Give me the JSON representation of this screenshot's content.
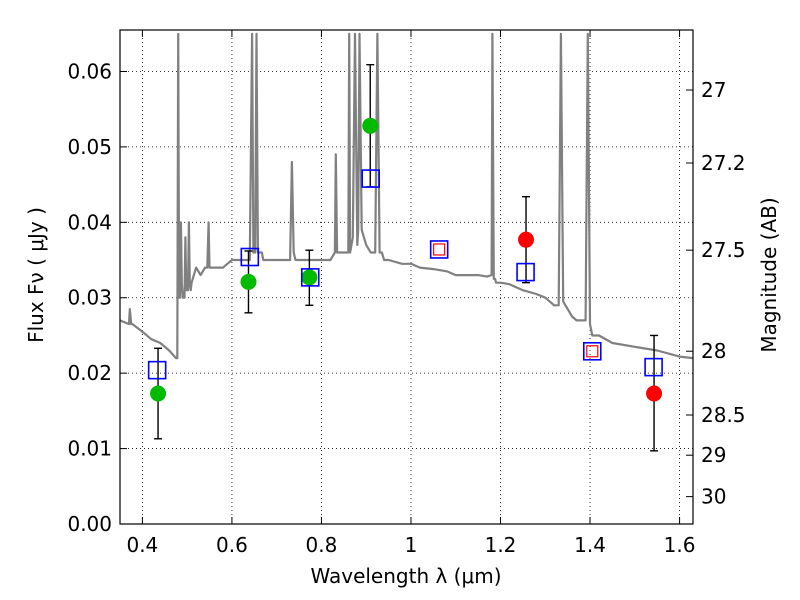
{
  "chart_data": {
    "type": "scatter",
    "title": "",
    "xlabel": "Wavelength  λ (μm)",
    "ylabel": "Flux  Fν  ( μJy )",
    "y2label": "Magnitude (AB)",
    "xlim": [
      0.35,
      1.63
    ],
    "ylim": [
      0.0,
      0.0655
    ],
    "grid": true,
    "x_ticks": [
      0.4,
      0.6,
      0.8,
      1.0,
      1.2,
      1.4,
      1.6
    ],
    "x_tick_labels": [
      "0.4",
      "0.6",
      "0.8",
      "1",
      "1.2",
      "1.4",
      "1.6"
    ],
    "y_ticks": [
      0.0,
      0.01,
      0.02,
      0.03,
      0.04,
      0.05,
      0.06
    ],
    "y_tick_labels": [
      "0.00",
      "0.01",
      "0.02",
      "0.03",
      "0.04",
      "0.05",
      "0.06"
    ],
    "y2_ticks": [
      27,
      27.2,
      27.5,
      28,
      28.5,
      29,
      30
    ],
    "y2_tick_labels": [
      "27",
      "27.2",
      "27.5",
      "28",
      "28.5",
      "29",
      "30"
    ],
    "colors": {
      "model": "#808080",
      "hst": "#00bb00",
      "ir": "#ff0000",
      "model_box": "#0000ff",
      "error": "#000000"
    },
    "series": [
      {
        "kind": "model_spectrum",
        "x": [
          0.35,
          0.37,
          0.372,
          0.375,
          0.378,
          0.4,
          0.42,
          0.44,
          0.46,
          0.475,
          0.478,
          0.48,
          0.482,
          0.484,
          0.486,
          0.488,
          0.49,
          0.492,
          0.494,
          0.496,
          0.498,
          0.5,
          0.502,
          0.504,
          0.506,
          0.508,
          0.51,
          0.52,
          0.53,
          0.54,
          0.545,
          0.548,
          0.55,
          0.56,
          0.58,
          0.6,
          0.62,
          0.64,
          0.645,
          0.648,
          0.652,
          0.655,
          0.658,
          0.661,
          0.664,
          0.667,
          0.67,
          0.7,
          0.72,
          0.73,
          0.734,
          0.738,
          0.742,
          0.75,
          0.78,
          0.8,
          0.82,
          0.83,
          0.832,
          0.835,
          0.84,
          0.85,
          0.86,
          0.862,
          0.864,
          0.87,
          0.875,
          0.88,
          0.882,
          0.885,
          0.89,
          0.9,
          0.91,
          0.92,
          0.925,
          0.93,
          0.935,
          0.94,
          0.95,
          0.98,
          1.0,
          1.02,
          1.05,
          1.08,
          1.1,
          1.12,
          1.15,
          1.17,
          1.18,
          1.182,
          1.185,
          1.188,
          1.19,
          1.2,
          1.22,
          1.25,
          1.28,
          1.3,
          1.32,
          1.33,
          1.335,
          1.34,
          1.345,
          1.35,
          1.36,
          1.37,
          1.38,
          1.39,
          1.395,
          1.4,
          1.405,
          1.41,
          1.42,
          1.45,
          1.5,
          1.55,
          1.6,
          1.63
        ],
        "y": [
          0.027,
          0.0265,
          0.0285,
          0.0265,
          0.0265,
          0.0255,
          0.0245,
          0.024,
          0.023,
          0.022,
          0.022,
          0.065,
          0.03,
          0.03,
          0.04,
          0.032,
          0.03,
          0.03,
          0.03,
          0.038,
          0.031,
          0.031,
          0.031,
          0.04,
          0.032,
          0.031,
          0.032,
          0.034,
          0.033,
          0.034,
          0.034,
          0.04,
          0.034,
          0.034,
          0.034,
          0.035,
          0.035,
          0.035,
          0.065,
          0.036,
          0.036,
          0.065,
          0.036,
          0.036,
          0.036,
          0.036,
          0.035,
          0.035,
          0.035,
          0.035,
          0.048,
          0.036,
          0.035,
          0.035,
          0.035,
          0.035,
          0.035,
          0.036,
          0.049,
          0.036,
          0.036,
          0.036,
          0.036,
          0.065,
          0.036,
          0.038,
          0.065,
          0.037,
          0.039,
          0.065,
          0.039,
          0.037,
          0.036,
          0.036,
          0.065,
          0.036,
          0.036,
          0.035,
          0.035,
          0.0345,
          0.0345,
          0.034,
          0.0338,
          0.0335,
          0.033,
          0.033,
          0.033,
          0.0328,
          0.033,
          0.065,
          0.0325,
          0.0325,
          0.032,
          0.032,
          0.0318,
          0.031,
          0.0305,
          0.03,
          0.029,
          0.029,
          0.065,
          0.0295,
          0.029,
          0.0285,
          0.0275,
          0.027,
          0.027,
          0.027,
          0.065,
          0.0265,
          0.025,
          0.025,
          0.025,
          0.024,
          0.0235,
          0.023,
          0.0222,
          0.022
        ]
      },
      {
        "name": "",
        "kind": "observed_green",
        "points": [
          {
            "x": 0.435,
            "y": 0.0173,
            "ylo": 0.0113,
            "yhi": 0.0233
          },
          {
            "x": 0.637,
            "y": 0.0321,
            "ylo": 0.028,
            "yhi": 0.0362
          },
          {
            "x": 0.773,
            "y": 0.0327,
            "ylo": 0.029,
            "yhi": 0.0363
          },
          {
            "x": 0.909,
            "y": 0.0528,
            "ylo": 0.0447,
            "yhi": 0.0609
          }
        ]
      },
      {
        "name": "",
        "kind": "observed_red",
        "points": [
          {
            "x": 1.257,
            "y": 0.0377,
            "ylo": 0.032,
            "yhi": 0.0434
          },
          {
            "x": 1.543,
            "y": 0.0173,
            "ylo": 0.0097,
            "yhi": 0.025
          }
        ]
      },
      {
        "name": "",
        "kind": "model_photometry_box",
        "points": [
          {
            "x": 0.433,
            "y": 0.0204
          },
          {
            "x": 0.64,
            "y": 0.0354
          },
          {
            "x": 0.775,
            "y": 0.0327
          },
          {
            "x": 0.91,
            "y": 0.0458
          },
          {
            "x": 1.063,
            "y": 0.0364
          },
          {
            "x": 1.256,
            "y": 0.0334
          },
          {
            "x": 1.405,
            "y": 0.0229
          },
          {
            "x": 1.542,
            "y": 0.0208
          }
        ]
      },
      {
        "name": "",
        "kind": "model_photometry_box_small",
        "points": [
          {
            "x": 1.063,
            "y": 0.0364
          },
          {
            "x": 1.405,
            "y": 0.0229
          }
        ]
      }
    ]
  }
}
